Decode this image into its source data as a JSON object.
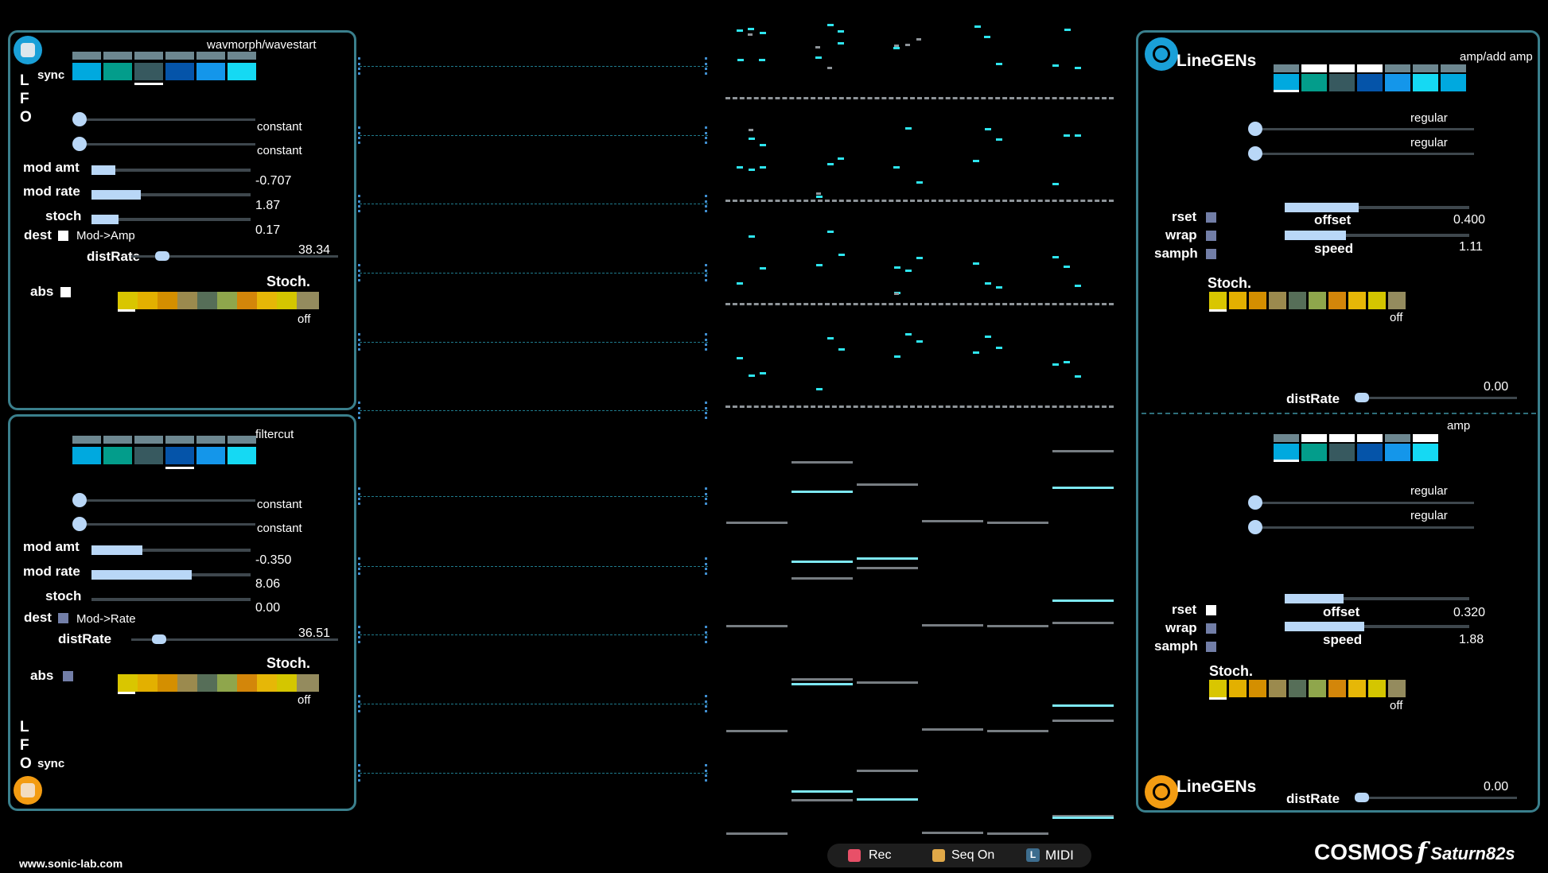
{
  "lfo_top": {
    "letters": [
      "L",
      "F",
      "O"
    ],
    "sync_label": "sync",
    "target": "wavmorph/wavestart",
    "shape_colors": [
      "#00a9df",
      "#039d8b",
      "#37595f",
      "#0554a9",
      "#1496ea",
      "#15d9f3"
    ],
    "slider1_label": "constant",
    "slider2_label": "constant",
    "mod_amt_label": "mod amt",
    "mod_amt_value": "-0.707",
    "mod_amt_frac": 0.15,
    "mod_rate_label": "mod rate",
    "mod_rate_value": "1.87",
    "mod_rate_frac": 0.31,
    "stoch_label": "stoch",
    "stoch_value": "0.17",
    "stoch_frac": 0.17,
    "dest_label": "dest",
    "dest_value": "Mod->Amp",
    "distrate_label": "distRate",
    "distrate_value": "38.34",
    "abs_label": "abs",
    "stoch_title": "Stoch.",
    "stoch_state": "off"
  },
  "lfo_bottom": {
    "letters": [
      "L",
      "F",
      "O"
    ],
    "sync_label": "sync",
    "target": "filtercut",
    "slider1_label": "constant",
    "slider2_label": "constant",
    "mod_amt_label": "mod amt",
    "mod_amt_value": "-0.350",
    "mod_amt_frac": 0.32,
    "mod_rate_label": "mod rate",
    "mod_rate_value": "8.06",
    "mod_rate_frac": 0.63,
    "stoch_label": "stoch",
    "stoch_value": "0.00",
    "stoch_frac": 0,
    "dest_label": "dest",
    "dest_value": "Mod->Rate",
    "distrate_label": "distRate",
    "distrate_value": "36.51",
    "abs_label": "abs",
    "stoch_title": "Stoch.",
    "stoch_state": "off"
  },
  "stoch_colors": [
    "#d9c600",
    "#e3b000",
    "#d48f00",
    "#9b8a4e",
    "#566e58",
    "#8fa64c",
    "#d3860a",
    "#e6b707",
    "#d4c600",
    "#948b5e"
  ],
  "linegen_top": {
    "title": "LineGENs",
    "target1": "amp/add amp",
    "slider1_label": "regular",
    "slider2_label": "regular",
    "rset_label": "rset",
    "wrap_label": "wrap",
    "samph_label": "samph",
    "offset_label": "offset",
    "offset_value": "0.400",
    "offset_frac": 0.4,
    "speed_label": "speed",
    "speed_value": "1.11",
    "speed_frac": 0.33,
    "stoch_title": "Stoch.",
    "stoch_state": "off",
    "distrate_label": "distRate",
    "distrate_value": "0.00"
  },
  "linegen_bottom": {
    "title": "LineGENs",
    "target": "amp",
    "slider1_label": "regular",
    "slider2_label": "regular",
    "rset_label": "rset",
    "wrap_label": "wrap",
    "samph_label": "samph",
    "offset_label": "offset",
    "offset_value": "0.320",
    "offset_frac": 0.32,
    "speed_label": "speed",
    "speed_value": "1.88",
    "speed_frac": 0.43,
    "stoch_title": "Stoch.",
    "stoch_state": "off",
    "distrate_label": "distRate",
    "distrate_value": "0.00"
  },
  "transport": {
    "rec_label": "Rec",
    "seq_label": "Seq On",
    "midi_label": "MIDI",
    "midi_key": "L"
  },
  "footer": {
    "website": "www.sonic-lab.com",
    "brand": "COSMOS",
    "brand_f": "f",
    "brand_sub": "Saturn82s"
  },
  "colors": {
    "panel_border": "#3a7f8c",
    "slider_fill": "#b9d7f7",
    "cyan": "#2ee5ef",
    "orange": "#f39c12",
    "blue_ring": "#1aa0d8"
  }
}
